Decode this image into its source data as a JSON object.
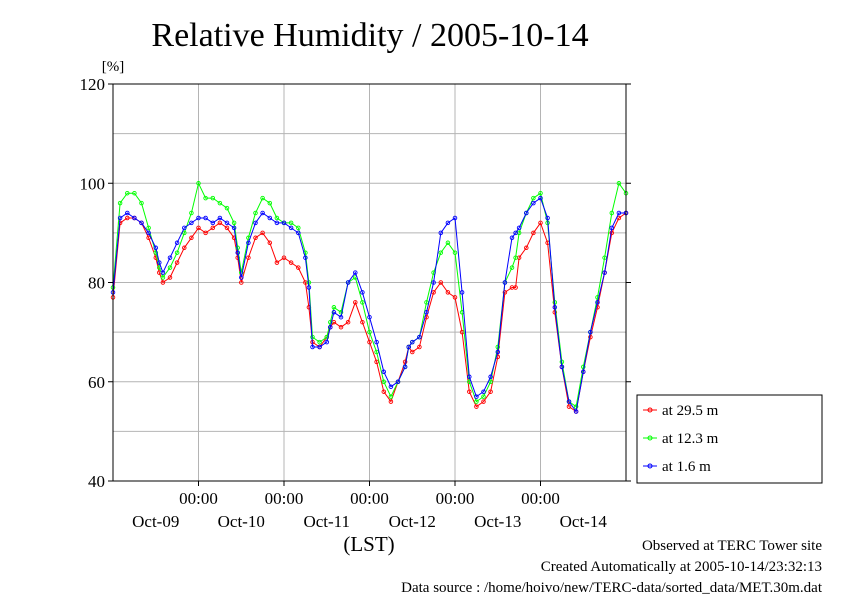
{
  "chart_data": {
    "type": "line",
    "title": "Relative Humidity / 2005-10-14",
    "ylabel": "[%]",
    "xlabel": "(LST)",
    "ylim": [
      40,
      120
    ],
    "yticks": [
      40,
      60,
      80,
      100,
      120
    ],
    "x_range_hours": [
      0,
      144
    ],
    "x_time_labels": [
      {
        "hour": 24,
        "label": "00:00"
      },
      {
        "hour": 48,
        "label": "00:00"
      },
      {
        "hour": 72,
        "label": "00:00"
      },
      {
        "hour": 96,
        "label": "00:00"
      },
      {
        "hour": 120,
        "label": "00:00"
      }
    ],
    "x_date_labels": [
      {
        "hour": 12,
        "label": "Oct-09"
      },
      {
        "hour": 36,
        "label": "Oct-10"
      },
      {
        "hour": 60,
        "label": "Oct-11"
      },
      {
        "hour": 84,
        "label": "Oct-12"
      },
      {
        "hour": 108,
        "label": "Oct-13"
      },
      {
        "hour": 132,
        "label": "Oct-14"
      }
    ],
    "grid": true,
    "legend_position": "right-bottom",
    "series": [
      {
        "name": "at 29.5 m",
        "color": "#ff0000",
        "x": [
          0,
          2,
          4,
          6,
          8,
          10,
          12,
          13,
          14,
          16,
          18,
          20,
          22,
          24,
          26,
          28,
          30,
          32,
          34,
          35,
          36,
          38,
          40,
          42,
          44,
          46,
          48,
          50,
          52,
          54,
          55,
          56,
          58,
          60,
          61,
          62,
          64,
          66,
          68,
          70,
          72,
          74,
          76,
          78,
          80,
          82,
          83,
          84,
          86,
          88,
          90,
          92,
          94,
          96,
          98,
          100,
          102,
          104,
          106,
          108,
          110,
          112,
          113,
          114,
          116,
          118,
          120,
          122,
          124,
          126,
          128,
          130,
          132,
          134,
          136,
          138,
          140,
          142,
          144
        ],
        "values": [
          77,
          92,
          93,
          93,
          92,
          89,
          85,
          82,
          80,
          81,
          84,
          87,
          89,
          91,
          90,
          91,
          92,
          91,
          89,
          85,
          80,
          85,
          89,
          90,
          88,
          84,
          85,
          84,
          83,
          80,
          75,
          68,
          67,
          69,
          71,
          72,
          71,
          72,
          76,
          72,
          68,
          64,
          58,
          56,
          60,
          64,
          67,
          66,
          67,
          73,
          78,
          80,
          78,
          77,
          70,
          58,
          55,
          56,
          58,
          65,
          78,
          79,
          79,
          85,
          87,
          90,
          92,
          88,
          74,
          63,
          55,
          54,
          62,
          69,
          75,
          82,
          90,
          93,
          94
        ]
      },
      {
        "name": "at 12.3 m",
        "color": "#00ff00",
        "x": [
          0,
          2,
          4,
          6,
          8,
          10,
          12,
          13,
          14,
          16,
          18,
          20,
          22,
          24,
          26,
          28,
          30,
          32,
          34,
          35,
          36,
          38,
          40,
          42,
          44,
          46,
          48,
          50,
          52,
          54,
          55,
          56,
          58,
          60,
          61,
          62,
          64,
          66,
          68,
          70,
          72,
          74,
          76,
          78,
          80,
          82,
          83,
          84,
          86,
          88,
          90,
          92,
          94,
          96,
          98,
          100,
          102,
          104,
          106,
          108,
          110,
          112,
          113,
          114,
          116,
          118,
          120,
          122,
          124,
          126,
          128,
          130,
          132,
          134,
          136,
          138,
          140,
          142,
          144
        ],
        "values": [
          79,
          96,
          98,
          98,
          96,
          91,
          86,
          83,
          81,
          83,
          86,
          90,
          94,
          100,
          97,
          97,
          96,
          95,
          92,
          87,
          82,
          89,
          94,
          97,
          96,
          93,
          92,
          92,
          91,
          86,
          80,
          69,
          68,
          69,
          72,
          75,
          74,
          80,
          81,
          76,
          70,
          66,
          60,
          57,
          60,
          63,
          67,
          68,
          69,
          76,
          82,
          86,
          88,
          86,
          74,
          60,
          56,
          57,
          60,
          67,
          80,
          83,
          85,
          90,
          94,
          97,
          98,
          92,
          76,
          64,
          56,
          55,
          63,
          70,
          77,
          85,
          94,
          100,
          98
        ]
      },
      {
        "name": "at 1.6 m",
        "color": "#0000ff",
        "x": [
          0,
          2,
          4,
          6,
          8,
          10,
          12,
          13,
          14,
          16,
          18,
          20,
          22,
          24,
          26,
          28,
          30,
          32,
          34,
          35,
          36,
          38,
          40,
          42,
          44,
          46,
          48,
          50,
          52,
          54,
          55,
          56,
          58,
          60,
          61,
          62,
          64,
          66,
          68,
          70,
          72,
          74,
          76,
          78,
          80,
          82,
          83,
          84,
          86,
          88,
          90,
          92,
          94,
          96,
          98,
          100,
          102,
          104,
          106,
          108,
          110,
          112,
          113,
          114,
          116,
          118,
          120,
          122,
          124,
          126,
          128,
          130,
          132,
          134,
          136,
          138,
          140,
          142,
          144
        ],
        "values": [
          78,
          93,
          94,
          93,
          92,
          90,
          87,
          84,
          82,
          85,
          88,
          91,
          92,
          93,
          93,
          92,
          93,
          92,
          91,
          86,
          81,
          88,
          92,
          94,
          93,
          92,
          92,
          91,
          90,
          85,
          79,
          67,
          67,
          68,
          71,
          74,
          73,
          80,
          82,
          78,
          73,
          68,
          62,
          59,
          60,
          63,
          67,
          68,
          69,
          74,
          80,
          90,
          92,
          93,
          78,
          61,
          57,
          58,
          61,
          66,
          80,
          89,
          90,
          91,
          94,
          96,
          97,
          93,
          75,
          63,
          56,
          54,
          62,
          70,
          76,
          82,
          91,
          94,
          94
        ]
      }
    ],
    "footer": {
      "line1": "Observed at TERC Tower site",
      "line2": "Created Automatically at 2005-10-14/23:32:13",
      "line3": "Data source : /home/hoivo/new/TERC-data/sorted_data/MET.30m.dat"
    }
  }
}
